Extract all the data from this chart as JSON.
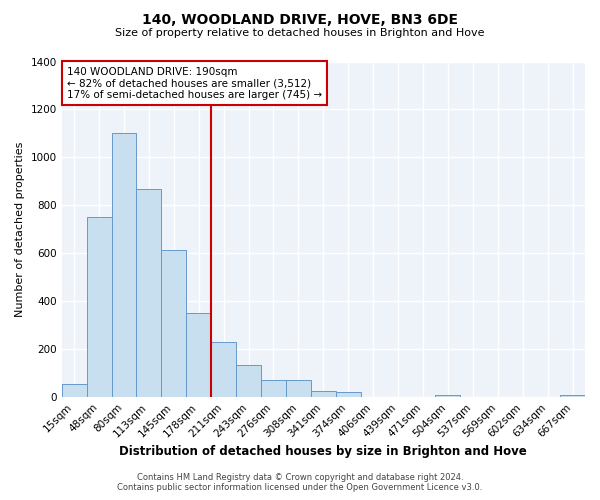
{
  "title": "140, WOODLAND DRIVE, HOVE, BN3 6DE",
  "subtitle": "Size of property relative to detached houses in Brighton and Hove",
  "xlabel": "Distribution of detached houses by size in Brighton and Hove",
  "ylabel": "Number of detached properties",
  "footer_line1": "Contains HM Land Registry data © Crown copyright and database right 2024.",
  "footer_line2": "Contains public sector information licensed under the Open Government Licence v3.0.",
  "bin_labels": [
    "15sqm",
    "48sqm",
    "80sqm",
    "113sqm",
    "145sqm",
    "178sqm",
    "211sqm",
    "243sqm",
    "276sqm",
    "308sqm",
    "341sqm",
    "374sqm",
    "406sqm",
    "439sqm",
    "471sqm",
    "504sqm",
    "537sqm",
    "569sqm",
    "602sqm",
    "634sqm",
    "667sqm"
  ],
  "bar_values": [
    55,
    750,
    1100,
    870,
    615,
    350,
    230,
    135,
    70,
    70,
    25,
    20,
    0,
    0,
    0,
    10,
    0,
    0,
    0,
    0,
    10
  ],
  "bar_color": "#c8dff0",
  "bar_edge_color": "#6699cc",
  "vline_x": 5.5,
  "vline_color": "#cc0000",
  "annotation_text_line1": "140 WOODLAND DRIVE: 190sqm",
  "annotation_text_line2": "← 82% of detached houses are smaller (3,512)",
  "annotation_text_line3": "17% of semi-detached houses are larger (745) →",
  "annotation_box_color": "#cc0000",
  "ylim": [
    0,
    1400
  ],
  "yticks": [
    0,
    200,
    400,
    600,
    800,
    1000,
    1200,
    1400
  ],
  "bg_color": "#ffffff",
  "plot_bg_color": "#eef3fa",
  "grid_color": "#ffffff",
  "title_fontsize": 10,
  "subtitle_fontsize": 8,
  "ylabel_fontsize": 8,
  "xlabel_fontsize": 8.5,
  "tick_fontsize": 7.5,
  "footer_fontsize": 6
}
